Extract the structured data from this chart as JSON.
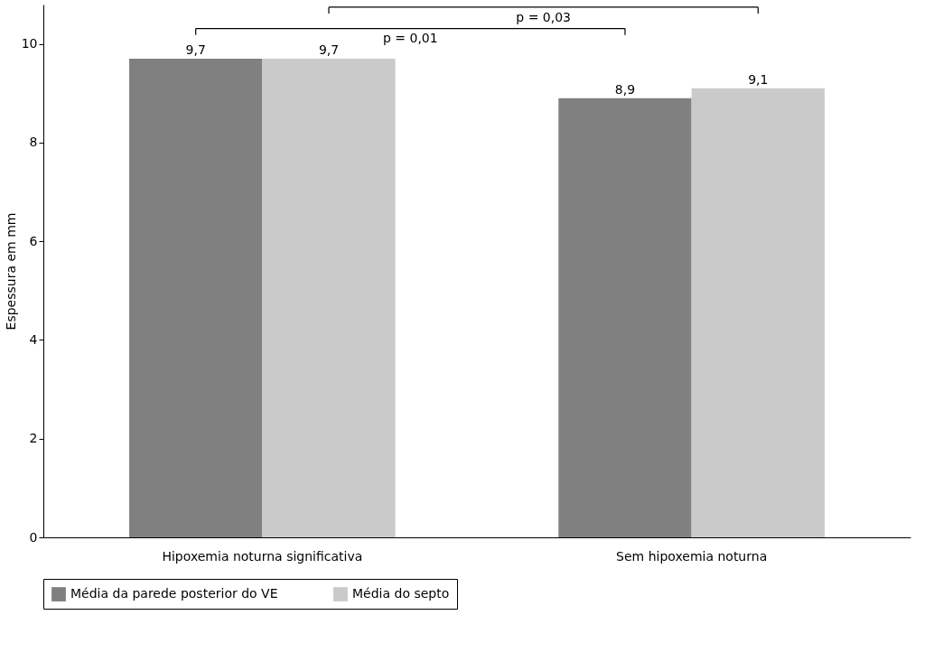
{
  "chart_data": {
    "type": "bar",
    "ylabel": "Espessura em mm",
    "categories": [
      "Hipoxemia noturna significativa",
      "Sem hipoxemia noturna"
    ],
    "series": [
      {
        "name": "Média da parede posterior do VE",
        "color": "#808080",
        "values": [
          9.7,
          8.9
        ],
        "value_labels": [
          "9,7",
          "8,9"
        ]
      },
      {
        "name": "Média do septo",
        "color": "#cacaca",
        "values": [
          9.7,
          9.1
        ],
        "value_labels": [
          "9,7",
          "9,1"
        ]
      }
    ],
    "ylim": [
      0,
      10.8
    ],
    "yticks": [
      0,
      2,
      4,
      6,
      8,
      10
    ],
    "grid": false,
    "legend": "bottom",
    "annotations": [
      "p = 0,01",
      "p = 0,03"
    ]
  }
}
